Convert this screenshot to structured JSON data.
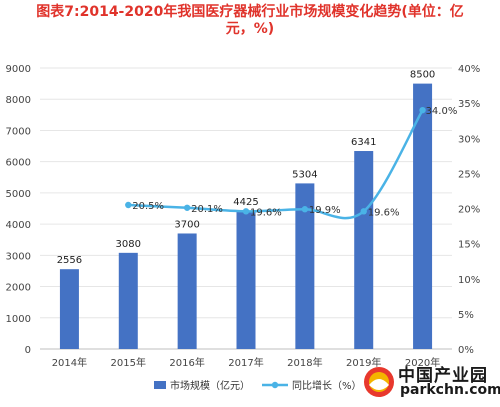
{
  "title": {
    "line1": "图表7:2014-2020年我国医疗器械行业市场规模变化趋势(单位：亿",
    "line2": "元，%)"
  },
  "colors": {
    "bar": "#4472c4",
    "line": "#4ab3e6",
    "title": "#e0332b"
  },
  "chart_data": {
    "type": "bar+line",
    "categories": [
      "2014年",
      "2015年",
      "2016年",
      "2017年",
      "2018年",
      "2019年",
      "2020年"
    ],
    "series": [
      {
        "name": "市场规模（亿元）",
        "type": "bar",
        "axis": "left",
        "values": [
          2556,
          3080,
          3700,
          4425,
          5304,
          6341,
          8500
        ],
        "labels": [
          "2556",
          "3080",
          "3700",
          "4425",
          "5304",
          "6341",
          "8500"
        ]
      },
      {
        "name": "同比增长（%）",
        "type": "line",
        "axis": "right",
        "values": [
          null,
          20.5,
          20.1,
          19.6,
          19.9,
          19.6,
          34.0
        ],
        "labels": [
          "",
          "20.5%",
          "20.1%",
          "19.6%",
          "19.9%",
          "19.6%",
          "34.0%"
        ]
      }
    ],
    "y_left": {
      "ylim": [
        0,
        9000
      ],
      "ticks": [
        "0",
        "1000",
        "2000",
        "3000",
        "4000",
        "5000",
        "6000",
        "7000",
        "8000",
        "9000"
      ]
    },
    "y_right": {
      "ylim": [
        0,
        40
      ],
      "ticks": [
        "0%",
        "5%",
        "10%",
        "15%",
        "20%",
        "25%",
        "30%",
        "35%",
        "40%"
      ]
    },
    "legend": {
      "position": "bottom",
      "items": [
        "市场规模（亿元）",
        "同比增长（%）"
      ]
    }
  },
  "watermark": {
    "brand_cn": "中国产业园",
    "url": "parkchn.com"
  }
}
